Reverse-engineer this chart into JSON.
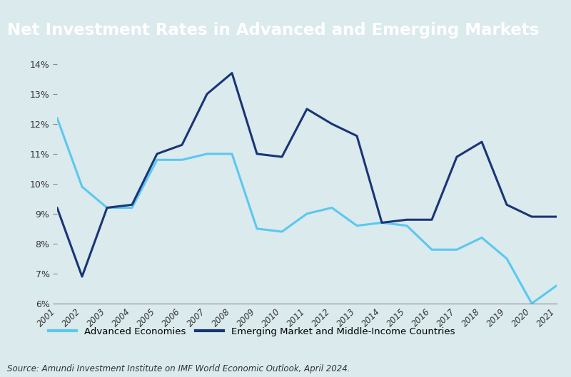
{
  "title": "Net Investment Rates in Advanced and Emerging Markets",
  "title_bg_color": "#3aaeae",
  "title_text_color": "#ffffff",
  "bg_color": "#daeaed",
  "plot_bg_color": "#daeaed",
  "source_text": "Source: Amundi Investment Institute on IMF World Economic Outlook, April 2024.",
  "years": [
    2001,
    2002,
    2003,
    2004,
    2005,
    2006,
    2007,
    2008,
    2009,
    2010,
    2011,
    2012,
    2013,
    2014,
    2015,
    2016,
    2017,
    2018,
    2019,
    2020,
    2021
  ],
  "advanced": [
    12.2,
    9.9,
    9.2,
    9.2,
    10.8,
    10.8,
    11.0,
    11.0,
    8.5,
    8.4,
    9.0,
    9.2,
    8.6,
    8.7,
    8.6,
    7.8,
    7.8,
    8.2,
    7.5,
    6.0,
    6.6
  ],
  "emerging": [
    9.2,
    6.9,
    9.2,
    9.3,
    11.0,
    11.3,
    13.0,
    13.7,
    11.0,
    10.9,
    12.5,
    12.0,
    11.6,
    8.7,
    8.8,
    8.8,
    10.9,
    11.4,
    9.3,
    8.9,
    8.9
  ],
  "advanced_color": "#5bc8f0",
  "emerging_color": "#1a3575",
  "ylim": [
    6,
    14
  ],
  "yticks": [
    6,
    7,
    8,
    9,
    10,
    11,
    12,
    13,
    14
  ],
  "ytick_labels": [
    "6%",
    "7%",
    "8%",
    "9%",
    "10%",
    "11%",
    "12%",
    "13%",
    "14%"
  ],
  "legend_advanced": "Advanced Economies",
  "legend_emerging": "Emerging Market and Middle-Income Countries",
  "line_width": 2.2
}
